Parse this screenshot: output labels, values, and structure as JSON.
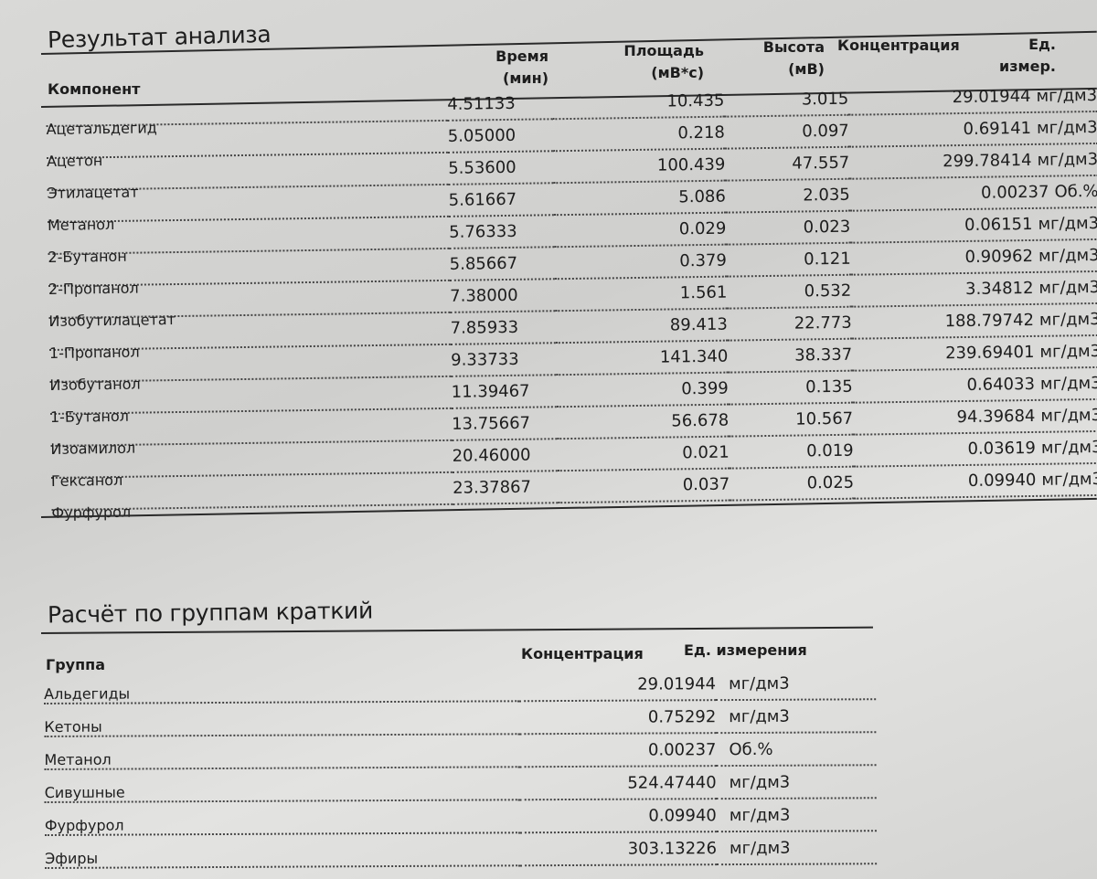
{
  "analysis": {
    "title": "Результат анализа",
    "headers": {
      "component": "Компонент",
      "time": "Время\n(мин)",
      "area": "Площадь\n(мВ*с)",
      "height": "Высота\n(мВ)",
      "concentration": "Концентрация",
      "unit": "Ед.\nизмер."
    },
    "rows": [
      {
        "name": "Ацетальдегид",
        "time": "4.51133",
        "area": "10.435",
        "height": "3.015",
        "conc": "29.01944",
        "unit": "мг/дм3"
      },
      {
        "name": "Ацетон",
        "time": "5.05000",
        "area": "0.218",
        "height": "0.097",
        "conc": "0.69141",
        "unit": "мг/дм3"
      },
      {
        "name": "Этилацетат",
        "time": "5.53600",
        "area": "100.439",
        "height": "47.557",
        "conc": "299.78414",
        "unit": "мг/дм3"
      },
      {
        "name": "Метанол",
        "time": "5.61667",
        "area": "5.086",
        "height": "2.035",
        "conc": "0.00237",
        "unit": "Об.%"
      },
      {
        "name": "2-Бутанон",
        "time": "5.76333",
        "area": "0.029",
        "height": "0.023",
        "conc": "0.06151",
        "unit": "мг/дм3"
      },
      {
        "name": "2-Пропанол",
        "time": "5.85667",
        "area": "0.379",
        "height": "0.121",
        "conc": "0.90962",
        "unit": "мг/дм3"
      },
      {
        "name": "Изобутилацетат",
        "time": "7.38000",
        "area": "1.561",
        "height": "0.532",
        "conc": "3.34812",
        "unit": "мг/дм3"
      },
      {
        "name": "1-Пропанол",
        "time": "7.85933",
        "area": "89.413",
        "height": "22.773",
        "conc": "188.79742",
        "unit": "мг/дм3"
      },
      {
        "name": "Изобутанол",
        "time": "9.33733",
        "area": "141.340",
        "height": "38.337",
        "conc": "239.69401",
        "unit": "мг/дм3"
      },
      {
        "name": "1-Бутанол",
        "time": "11.39467",
        "area": "0.399",
        "height": "0.135",
        "conc": "0.64033",
        "unit": "мг/дм3"
      },
      {
        "name": "Изоамилол",
        "time": "13.75667",
        "area": "56.678",
        "height": "10.567",
        "conc": "94.39684",
        "unit": "мг/дм3"
      },
      {
        "name": "Гексанол",
        "time": "20.46000",
        "area": "0.021",
        "height": "0.019",
        "conc": "0.03619",
        "unit": "мг/дм3"
      },
      {
        "name": "Фурфурол",
        "time": "23.37867",
        "area": "0.037",
        "height": "0.025",
        "conc": "0.09940",
        "unit": "мг/дм3"
      }
    ]
  },
  "groups": {
    "title": "Расчёт по группам краткий",
    "headers": {
      "group": "Группа",
      "concentration": "Концентрация",
      "unit": "Ед. измерения"
    },
    "rows": [
      {
        "name": "Альдегиды",
        "conc": "29.01944",
        "unit": "мг/дм3"
      },
      {
        "name": "Кетоны",
        "conc": "0.75292",
        "unit": "мг/дм3"
      },
      {
        "name": "Метанол",
        "conc": "0.00237",
        "unit": "Об.%"
      },
      {
        "name": "Сивушные",
        "conc": "524.47440",
        "unit": "мг/дм3"
      },
      {
        "name": "Фурфурол",
        "conc": "0.09940",
        "unit": "мг/дм3"
      },
      {
        "name": "Эфиры",
        "conc": "303.13226",
        "unit": "мг/дм3"
      }
    ]
  }
}
